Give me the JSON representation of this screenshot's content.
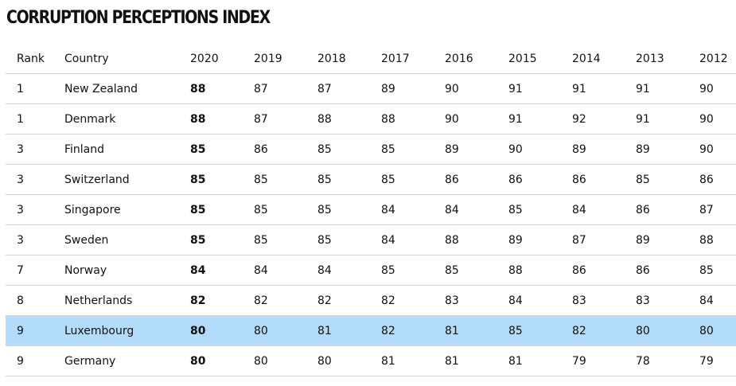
{
  "title": "CORRUPTION PERCEPTIONS INDEX",
  "table": {
    "headers": [
      "Rank",
      "Country",
      "2020",
      "2019",
      "2018",
      "2017",
      "2016",
      "2015",
      "2014",
      "2013",
      "2012"
    ],
    "highlight_color": "#b3dcfb",
    "rows": [
      {
        "rank": "1",
        "country": "New Zealand",
        "scores": [
          "88",
          "87",
          "87",
          "89",
          "90",
          "91",
          "91",
          "91",
          "90"
        ],
        "highlighted": false
      },
      {
        "rank": "1",
        "country": "Denmark",
        "scores": [
          "88",
          "87",
          "88",
          "88",
          "90",
          "91",
          "92",
          "91",
          "90"
        ],
        "highlighted": false
      },
      {
        "rank": "3",
        "country": "Finland",
        "scores": [
          "85",
          "86",
          "85",
          "85",
          "89",
          "90",
          "89",
          "89",
          "90"
        ],
        "highlighted": false
      },
      {
        "rank": "3",
        "country": "Switzerland",
        "scores": [
          "85",
          "85",
          "85",
          "85",
          "86",
          "86",
          "86",
          "85",
          "86"
        ],
        "highlighted": false
      },
      {
        "rank": "3",
        "country": "Singapore",
        "scores": [
          "85",
          "85",
          "85",
          "84",
          "84",
          "85",
          "84",
          "86",
          "87"
        ],
        "highlighted": false
      },
      {
        "rank": "3",
        "country": "Sweden",
        "scores": [
          "85",
          "85",
          "85",
          "84",
          "88",
          "89",
          "87",
          "89",
          "88"
        ],
        "highlighted": false
      },
      {
        "rank": "7",
        "country": "Norway",
        "scores": [
          "84",
          "84",
          "84",
          "85",
          "85",
          "88",
          "86",
          "86",
          "85"
        ],
        "highlighted": false
      },
      {
        "rank": "8",
        "country": "Netherlands",
        "scores": [
          "82",
          "82",
          "82",
          "82",
          "83",
          "84",
          "83",
          "83",
          "84"
        ],
        "highlighted": false
      },
      {
        "rank": "9",
        "country": "Luxembourg",
        "scores": [
          "80",
          "80",
          "81",
          "82",
          "81",
          "85",
          "82",
          "80",
          "80"
        ],
        "highlighted": true
      },
      {
        "rank": "9",
        "country": "Germany",
        "scores": [
          "80",
          "80",
          "80",
          "81",
          "81",
          "81",
          "79",
          "78",
          "79"
        ],
        "highlighted": false
      }
    ]
  }
}
